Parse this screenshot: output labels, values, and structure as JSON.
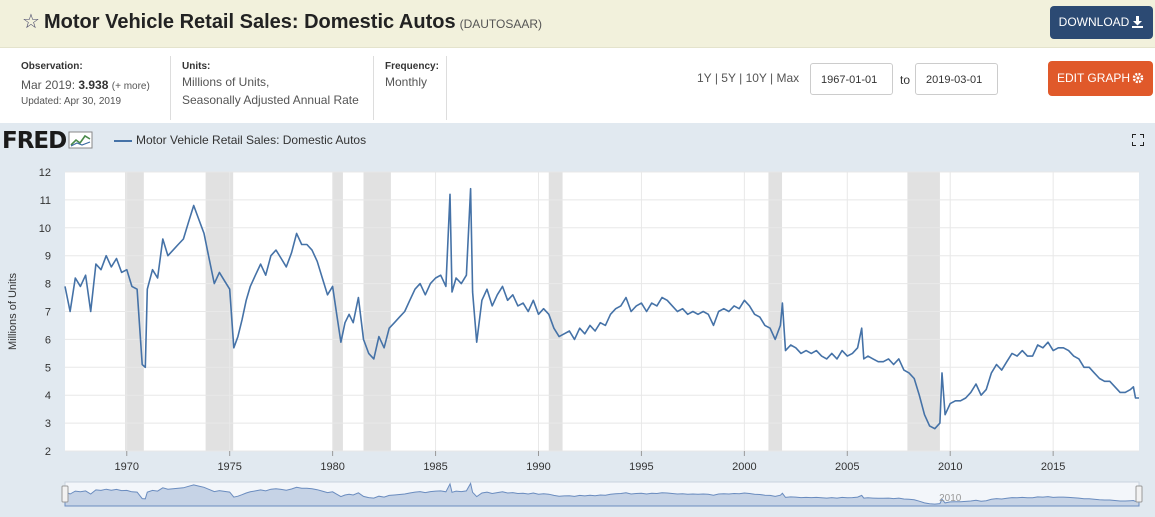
{
  "header": {
    "title": "Motor Vehicle Retail Sales: Domestic Autos",
    "series_id": "(DAUTOSAAR)",
    "download_label": "DOWNLOAD",
    "star_icon": "star-outline-icon",
    "download_icon": "download-icon"
  },
  "meta": {
    "observation_label": "Observation:",
    "observation_date": "Mar 2019:",
    "observation_value": "3.938",
    "observation_more": "(+ more)",
    "updated": "Updated: Apr 30, 2019",
    "units_label": "Units:",
    "units_line1": "Millions of Units,",
    "units_line2": "Seasonally Adjusted Annual Rate",
    "frequency_label": "Frequency:",
    "frequency_value": "Monthly"
  },
  "controls": {
    "range_1y": "1Y",
    "range_5y": "5Y",
    "range_10y": "10Y",
    "range_max": "Max",
    "separator": "|",
    "start_date": "1967-01-01",
    "to_label": "to",
    "end_date": "2019-03-01",
    "edit_label": "EDIT GRAPH",
    "edit_icon": "gear-icon"
  },
  "graph": {
    "logo": "FRED",
    "logo_icon": "fred-chart-icon",
    "legend_label": "Motor Vehicle Retail Sales: Domestic Autos",
    "fullscreen_icon": "fullscreen-icon",
    "navigator_year": "2010"
  },
  "chart_data": {
    "type": "line",
    "ylabel": "Millions of Units",
    "xlabel": "",
    "xlim": [
      1967.0,
      2019.17
    ],
    "ylim": [
      2,
      12
    ],
    "yticks": [
      2,
      3,
      4,
      5,
      6,
      7,
      8,
      9,
      10,
      11,
      12
    ],
    "xticks": [
      1970,
      1975,
      1980,
      1985,
      1990,
      1995,
      2000,
      2005,
      2010,
      2015
    ],
    "grid": true,
    "legend": "top-left",
    "line_color": "#4572a7",
    "recessions": [
      [
        1969.92,
        1970.83
      ],
      [
        1973.83,
        1975.17
      ],
      [
        1980.0,
        1980.5
      ],
      [
        1981.5,
        1982.83
      ],
      [
        1990.5,
        1991.17
      ],
      [
        2001.17,
        2001.83
      ],
      [
        2007.92,
        2009.5
      ]
    ],
    "series": [
      {
        "values": [
          [
            1967.0,
            7.9
          ],
          [
            1967.25,
            7.0
          ],
          [
            1967.5,
            8.2
          ],
          [
            1967.75,
            7.9
          ],
          [
            1968.0,
            8.3
          ],
          [
            1968.25,
            7.0
          ],
          [
            1968.5,
            8.7
          ],
          [
            1968.75,
            8.5
          ],
          [
            1969.0,
            9.0
          ],
          [
            1969.25,
            8.6
          ],
          [
            1969.5,
            8.9
          ],
          [
            1969.75,
            8.4
          ],
          [
            1970.0,
            8.5
          ],
          [
            1970.25,
            7.9
          ],
          [
            1970.5,
            7.8
          ],
          [
            1970.75,
            5.1
          ],
          [
            1970.9,
            5.0
          ],
          [
            1971.0,
            7.8
          ],
          [
            1971.25,
            8.5
          ],
          [
            1971.5,
            8.2
          ],
          [
            1971.75,
            9.6
          ],
          [
            1972.0,
            9.0
          ],
          [
            1972.25,
            9.2
          ],
          [
            1972.5,
            9.4
          ],
          [
            1972.75,
            9.6
          ],
          [
            1973.0,
            10.2
          ],
          [
            1973.25,
            10.8
          ],
          [
            1973.5,
            10.3
          ],
          [
            1973.75,
            9.8
          ],
          [
            1974.0,
            8.9
          ],
          [
            1974.25,
            8.0
          ],
          [
            1974.5,
            8.4
          ],
          [
            1974.75,
            8.1
          ],
          [
            1975.0,
            7.8
          ],
          [
            1975.2,
            5.7
          ],
          [
            1975.4,
            6.1
          ],
          [
            1975.6,
            6.7
          ],
          [
            1975.8,
            7.4
          ],
          [
            1976.0,
            7.9
          ],
          [
            1976.25,
            8.3
          ],
          [
            1976.5,
            8.7
          ],
          [
            1976.75,
            8.3
          ],
          [
            1977.0,
            9.0
          ],
          [
            1977.25,
            9.2
          ],
          [
            1977.5,
            8.9
          ],
          [
            1977.75,
            8.6
          ],
          [
            1978.0,
            9.1
          ],
          [
            1978.25,
            9.8
          ],
          [
            1978.5,
            9.4
          ],
          [
            1978.75,
            9.4
          ],
          [
            1979.0,
            9.2
          ],
          [
            1979.25,
            8.8
          ],
          [
            1979.5,
            8.2
          ],
          [
            1979.75,
            7.6
          ],
          [
            1980.0,
            7.9
          ],
          [
            1980.2,
            6.9
          ],
          [
            1980.4,
            5.9
          ],
          [
            1980.6,
            6.6
          ],
          [
            1980.8,
            6.9
          ],
          [
            1981.0,
            6.6
          ],
          [
            1981.25,
            7.5
          ],
          [
            1981.5,
            6.0
          ],
          [
            1981.75,
            5.5
          ],
          [
            1982.0,
            5.3
          ],
          [
            1982.25,
            6.1
          ],
          [
            1982.5,
            5.7
          ],
          [
            1982.75,
            6.4
          ],
          [
            1983.0,
            6.6
          ],
          [
            1983.25,
            6.8
          ],
          [
            1983.5,
            7.0
          ],
          [
            1983.75,
            7.4
          ],
          [
            1984.0,
            7.8
          ],
          [
            1984.25,
            8.0
          ],
          [
            1984.5,
            7.6
          ],
          [
            1984.75,
            8.0
          ],
          [
            1985.0,
            8.2
          ],
          [
            1985.25,
            8.3
          ],
          [
            1985.5,
            7.9
          ],
          [
            1985.7,
            11.2
          ],
          [
            1985.8,
            7.7
          ],
          [
            1986.0,
            8.2
          ],
          [
            1986.25,
            8.0
          ],
          [
            1986.5,
            8.3
          ],
          [
            1986.7,
            11.4
          ],
          [
            1986.8,
            7.7
          ],
          [
            1987.0,
            5.9
          ],
          [
            1987.25,
            7.4
          ],
          [
            1987.5,
            7.8
          ],
          [
            1987.75,
            7.2
          ],
          [
            1988.0,
            7.6
          ],
          [
            1988.25,
            7.9
          ],
          [
            1988.5,
            7.4
          ],
          [
            1988.75,
            7.6
          ],
          [
            1989.0,
            7.2
          ],
          [
            1989.25,
            7.3
          ],
          [
            1989.5,
            7.0
          ],
          [
            1989.75,
            7.4
          ],
          [
            1990.0,
            6.9
          ],
          [
            1990.25,
            7.1
          ],
          [
            1990.5,
            6.9
          ],
          [
            1990.75,
            6.4
          ],
          [
            1991.0,
            6.1
          ],
          [
            1991.25,
            6.2
          ],
          [
            1991.5,
            6.3
          ],
          [
            1991.75,
            6.0
          ],
          [
            1992.0,
            6.4
          ],
          [
            1992.25,
            6.2
          ],
          [
            1992.5,
            6.5
          ],
          [
            1992.75,
            6.3
          ],
          [
            1993.0,
            6.6
          ],
          [
            1993.25,
            6.5
          ],
          [
            1993.5,
            6.9
          ],
          [
            1993.75,
            7.1
          ],
          [
            1994.0,
            7.2
          ],
          [
            1994.25,
            7.5
          ],
          [
            1994.5,
            7.0
          ],
          [
            1994.75,
            7.2
          ],
          [
            1995.0,
            7.3
          ],
          [
            1995.25,
            7.0
          ],
          [
            1995.5,
            7.3
          ],
          [
            1995.75,
            7.2
          ],
          [
            1996.0,
            7.5
          ],
          [
            1996.25,
            7.4
          ],
          [
            1996.5,
            7.2
          ],
          [
            1996.75,
            7.0
          ],
          [
            1997.0,
            7.1
          ],
          [
            1997.25,
            6.9
          ],
          [
            1997.5,
            7.0
          ],
          [
            1997.75,
            6.9
          ],
          [
            1998.0,
            7.0
          ],
          [
            1998.25,
            6.9
          ],
          [
            1998.5,
            6.5
          ],
          [
            1998.75,
            7.0
          ],
          [
            1999.0,
            7.1
          ],
          [
            1999.25,
            7.0
          ],
          [
            1999.5,
            7.2
          ],
          [
            1999.75,
            7.1
          ],
          [
            2000.0,
            7.4
          ],
          [
            2000.25,
            7.2
          ],
          [
            2000.5,
            6.9
          ],
          [
            2000.75,
            6.8
          ],
          [
            2001.0,
            6.5
          ],
          [
            2001.25,
            6.4
          ],
          [
            2001.5,
            6.0
          ],
          [
            2001.75,
            6.5
          ],
          [
            2001.85,
            7.3
          ],
          [
            2002.0,
            5.6
          ],
          [
            2002.25,
            5.8
          ],
          [
            2002.5,
            5.7
          ],
          [
            2002.75,
            5.5
          ],
          [
            2003.0,
            5.6
          ],
          [
            2003.25,
            5.5
          ],
          [
            2003.5,
            5.6
          ],
          [
            2003.75,
            5.4
          ],
          [
            2004.0,
            5.3
          ],
          [
            2004.25,
            5.5
          ],
          [
            2004.5,
            5.3
          ],
          [
            2004.75,
            5.6
          ],
          [
            2005.0,
            5.4
          ],
          [
            2005.25,
            5.5
          ],
          [
            2005.5,
            5.7
          ],
          [
            2005.7,
            6.4
          ],
          [
            2005.8,
            5.3
          ],
          [
            2006.0,
            5.4
          ],
          [
            2006.25,
            5.3
          ],
          [
            2006.5,
            5.2
          ],
          [
            2006.75,
            5.2
          ],
          [
            2007.0,
            5.3
          ],
          [
            2007.25,
            5.1
          ],
          [
            2007.5,
            5.3
          ],
          [
            2007.75,
            4.9
          ],
          [
            2008.0,
            4.8
          ],
          [
            2008.25,
            4.6
          ],
          [
            2008.5,
            4.0
          ],
          [
            2008.75,
            3.3
          ],
          [
            2009.0,
            2.9
          ],
          [
            2009.25,
            2.8
          ],
          [
            2009.5,
            3.0
          ],
          [
            2009.6,
            4.8
          ],
          [
            2009.75,
            3.3
          ],
          [
            2010.0,
            3.7
          ],
          [
            2010.25,
            3.8
          ],
          [
            2010.5,
            3.8
          ],
          [
            2010.75,
            3.9
          ],
          [
            2011.0,
            4.1
          ],
          [
            2011.25,
            4.4
          ],
          [
            2011.5,
            4.0
          ],
          [
            2011.75,
            4.2
          ],
          [
            2012.0,
            4.8
          ],
          [
            2012.25,
            5.1
          ],
          [
            2012.5,
            4.9
          ],
          [
            2012.75,
            5.2
          ],
          [
            2013.0,
            5.5
          ],
          [
            2013.25,
            5.4
          ],
          [
            2013.5,
            5.6
          ],
          [
            2013.75,
            5.4
          ],
          [
            2014.0,
            5.4
          ],
          [
            2014.25,
            5.8
          ],
          [
            2014.5,
            5.7
          ],
          [
            2014.75,
            5.9
          ],
          [
            2015.0,
            5.6
          ],
          [
            2015.25,
            5.7
          ],
          [
            2015.5,
            5.7
          ],
          [
            2015.75,
            5.6
          ],
          [
            2016.0,
            5.4
          ],
          [
            2016.25,
            5.3
          ],
          [
            2016.5,
            5.0
          ],
          [
            2016.75,
            5.0
          ],
          [
            2017.0,
            4.8
          ],
          [
            2017.25,
            4.6
          ],
          [
            2017.5,
            4.5
          ],
          [
            2017.75,
            4.5
          ],
          [
            2018.0,
            4.3
          ],
          [
            2018.25,
            4.1
          ],
          [
            2018.5,
            4.1
          ],
          [
            2018.75,
            4.2
          ],
          [
            2018.9,
            4.3
          ],
          [
            2019.0,
            3.9
          ],
          [
            2019.17,
            3.9
          ]
        ]
      }
    ]
  }
}
